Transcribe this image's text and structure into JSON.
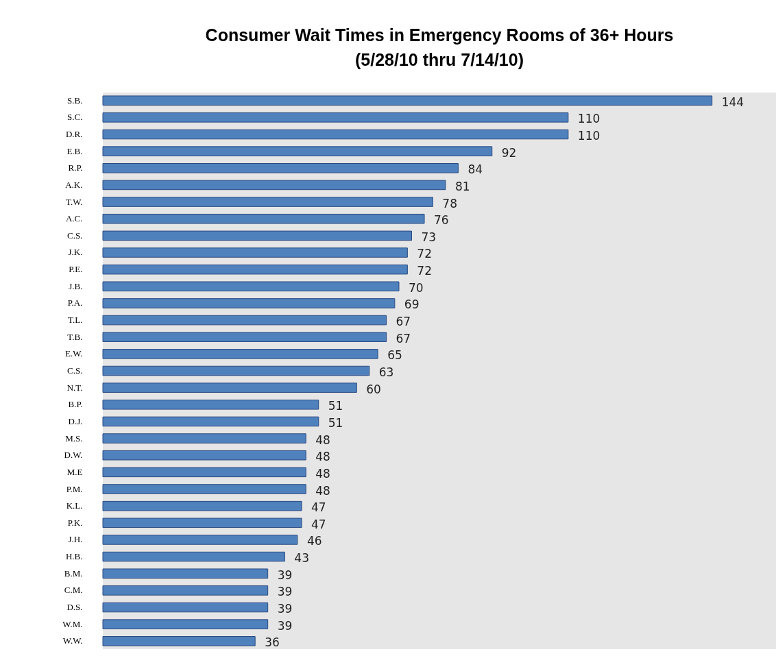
{
  "chart_data": {
    "type": "bar",
    "orientation": "horizontal",
    "title": "Consumer Wait Times in Emergency Rooms of 36+ Hours\n(5/28/10 thru 7/14/10)",
    "categories": [
      "S.B.",
      "S.C.",
      "D.R.",
      "E.B.",
      "R.P.",
      "A.K.",
      "T.W.",
      "A.C.",
      "C.S.",
      "J.K.",
      "P.E.",
      "J.B.",
      "P.A.",
      "T.L.",
      "T.B.",
      "E.W.",
      "C.S.",
      "N.T.",
      "B.P.",
      "D.J.",
      "M.S.",
      "D.W.",
      "M.E",
      "P.M.",
      "K.L.",
      "P.K.",
      "J.H.",
      "H.B.",
      "B.M.",
      "C.M.",
      "D.S.",
      "W.M.",
      "W.W."
    ],
    "values": [
      144,
      110,
      110,
      92,
      84,
      81,
      78,
      76,
      73,
      72,
      72,
      70,
      69,
      67,
      67,
      65,
      63,
      60,
      51,
      51,
      48,
      48,
      48,
      48,
      47,
      47,
      46,
      43,
      39,
      39,
      39,
      39,
      36
    ],
    "color": "#4f81bd",
    "data_labels": true,
    "tick_labels": "y"
  }
}
